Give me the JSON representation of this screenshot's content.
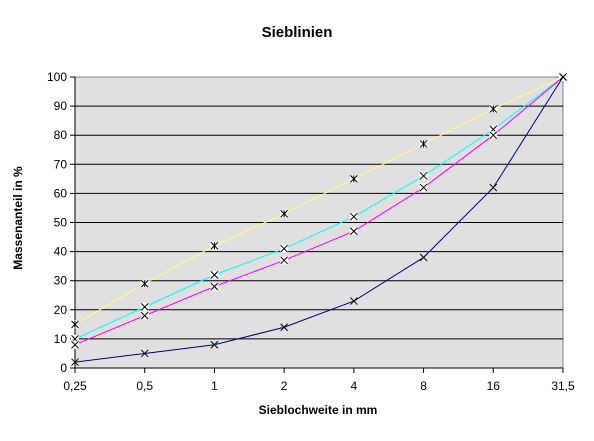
{
  "chart_data": {
    "type": "line",
    "title": "Sieblinien",
    "xlabel": "Sieblochweite in mm",
    "ylabel": "Massenanteil in %",
    "categories": [
      "0,25",
      "0,5",
      "1",
      "2",
      "4",
      "8",
      "16",
      "31,5"
    ],
    "ylim": [
      0,
      100
    ],
    "yticks": [
      0,
      10,
      20,
      30,
      40,
      50,
      60,
      70,
      80,
      90,
      100
    ],
    "grid": true,
    "plot_background": "#e0e0e0",
    "series": [
      {
        "color": "#ffff80",
        "values": [
          15,
          29,
          42,
          53,
          65,
          77,
          89,
          100
        ]
      },
      {
        "color": "#00ffff",
        "values": [
          10,
          21,
          32,
          41,
          52,
          66,
          82,
          100
        ]
      },
      {
        "color": "#ff00ff",
        "values": [
          8,
          18,
          28,
          37,
          47,
          62,
          80,
          100
        ]
      },
      {
        "color": "#000080",
        "values": [
          2,
          5,
          8,
          14,
          23,
          38,
          62,
          100
        ]
      }
    ]
  }
}
